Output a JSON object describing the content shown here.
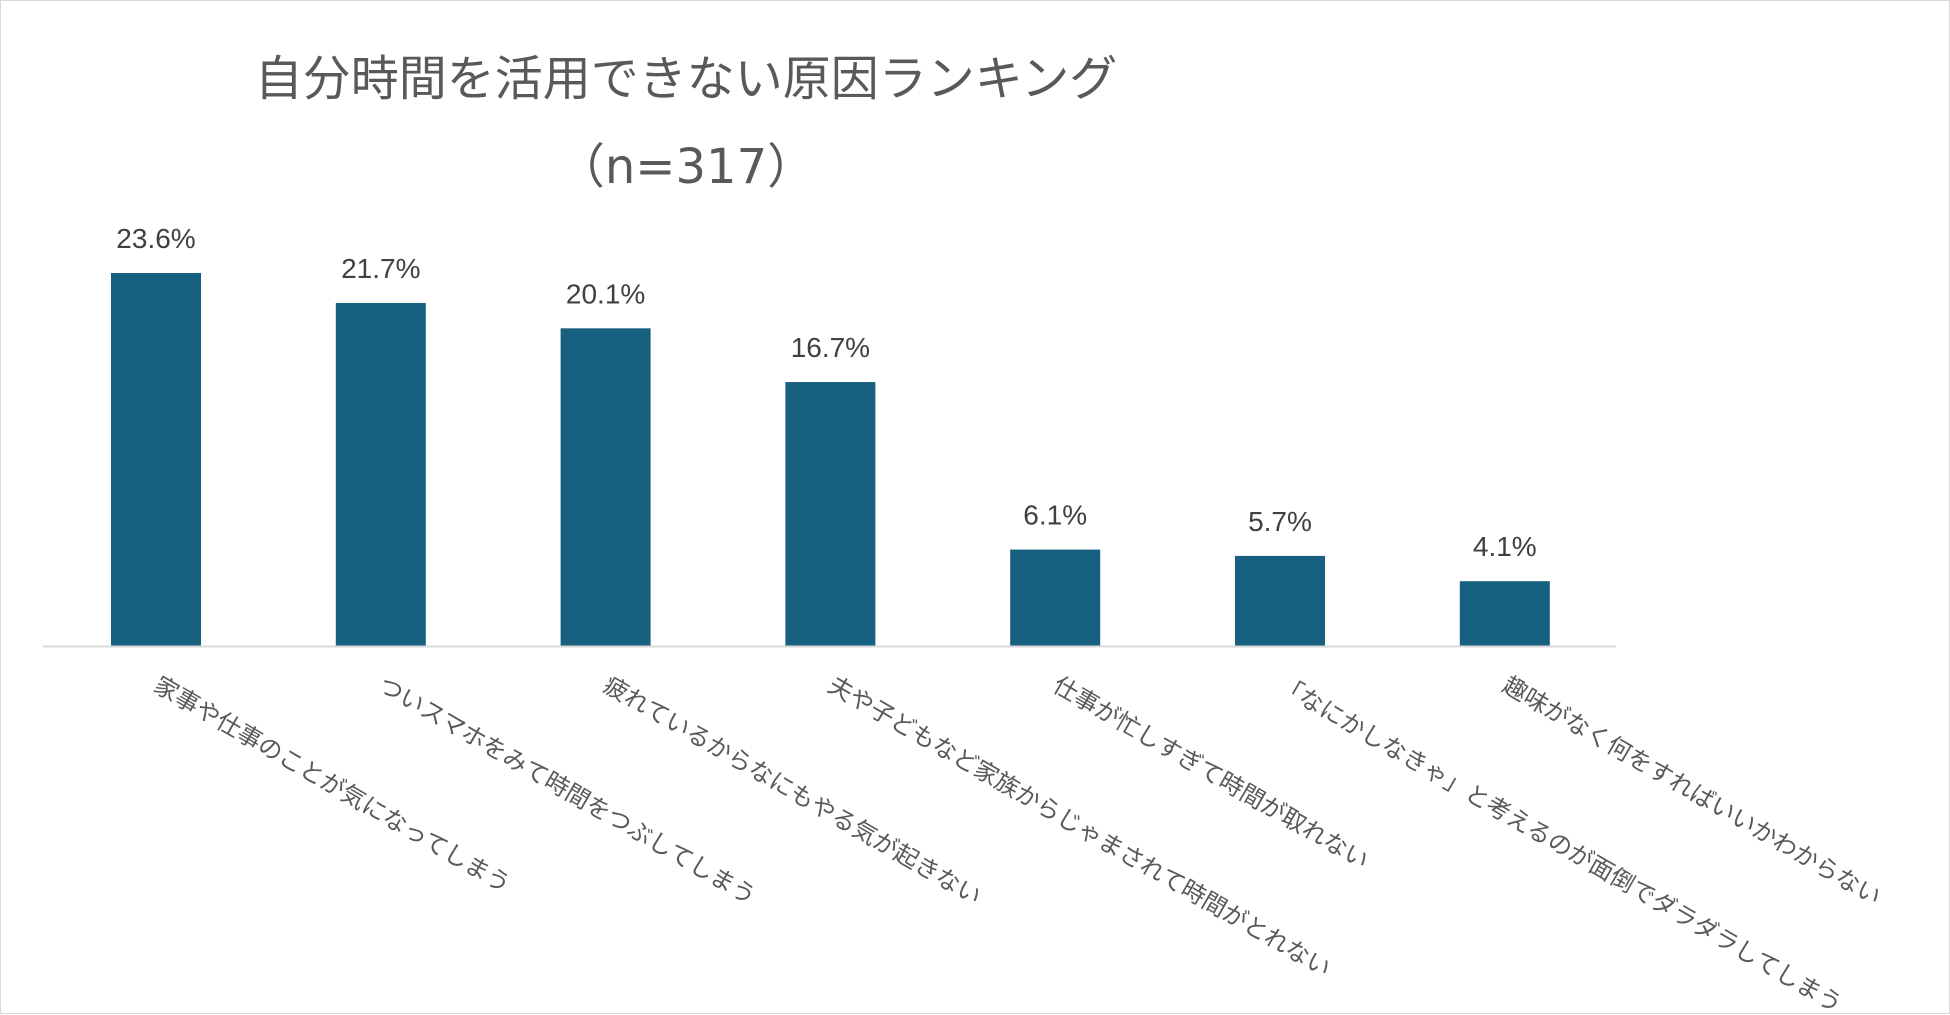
{
  "chart_data": {
    "type": "bar",
    "title": "自分時間を活用できない原因ランキング",
    "subtitle": "（n=317）",
    "categories": [
      "家事や仕事のことが気になってしまう",
      "ついスマホをみて時間をつぶしてしまう",
      "疲れているからなにもやる気が起きない",
      "夫や子どもなど家族からじゃまされて時間がとれない",
      "仕事が忙しすぎて時間が取れない",
      "「なにかしなきゃ」と考えるのが面倒でダラダラしてしまう",
      "趣味がなく何をすればいいかわからない"
    ],
    "values": [
      23.6,
      21.7,
      20.1,
      16.7,
      6.1,
      5.7,
      4.1
    ],
    "value_labels": [
      "23.6%",
      "21.7%",
      "20.1%",
      "16.7%",
      "6.1%",
      "5.7%",
      "4.1%"
    ],
    "ylim": [
      0,
      23.6
    ],
    "grid": false,
    "legend": "none",
    "colors": {
      "bar": "#17607f",
      "axis": "#d9d9d9",
      "title": "#595959",
      "label": "#404040",
      "category": "#595959"
    }
  }
}
